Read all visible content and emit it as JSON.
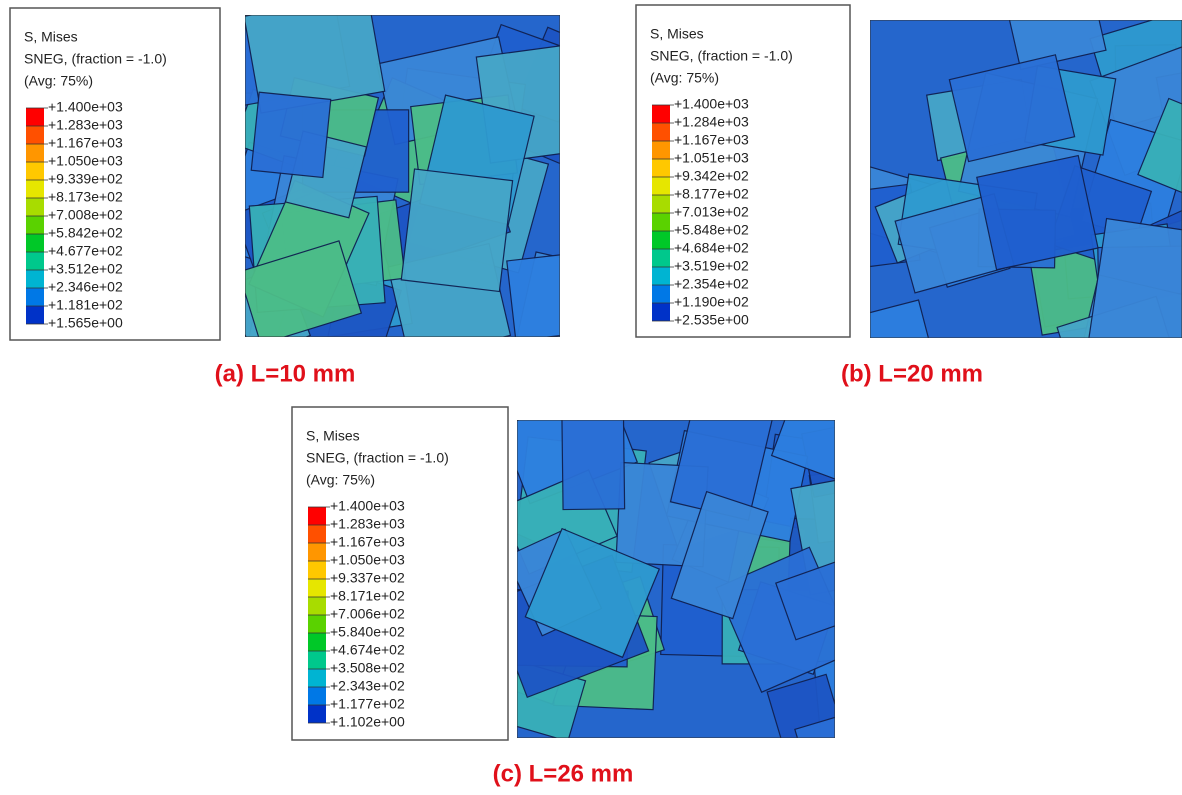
{
  "panels": [
    {
      "legend": {
        "lines": [
          "S, Mises",
          "SNEG, (fraction = -1.0)",
          "(Avg: 75%)"
        ],
        "levels": [
          "+1.400e+03",
          "+1.283e+03",
          "+1.167e+03",
          "+1.050e+03",
          "+9.339e+02",
          "+8.173e+02",
          "+7.008e+02",
          "+5.842e+02",
          "+4.677e+02",
          "+3.512e+02",
          "+2.346e+02",
          "+1.181e+02",
          "+1.565e+00"
        ]
      },
      "caption": "(a) L=10 mm"
    },
    {
      "legend": {
        "lines": [
          "S, Mises",
          "SNEG, (fraction = -1.0)",
          "(Avg: 75%)"
        ],
        "levels": [
          "+1.400e+03",
          "+1.284e+03",
          "+1.167e+03",
          "+1.051e+03",
          "+9.342e+02",
          "+8.177e+02",
          "+7.013e+02",
          "+5.848e+02",
          "+4.684e+02",
          "+3.519e+02",
          "+2.354e+02",
          "+1.190e+02",
          "+2.535e+00"
        ]
      },
      "caption": "(b) L=20 mm"
    },
    {
      "legend": {
        "lines": [
          "S, Mises",
          "SNEG, (fraction = -1.0)",
          "(Avg: 75%)"
        ],
        "levels": [
          "+1.400e+03",
          "+1.283e+03",
          "+1.167e+03",
          "+1.050e+03",
          "+9.337e+02",
          "+8.171e+02",
          "+7.006e+02",
          "+5.840e+02",
          "+4.674e+02",
          "+3.508e+02",
          "+2.343e+02",
          "+1.177e+02",
          "+1.102e+00"
        ]
      },
      "caption": "(c) L=26 mm"
    }
  ]
}
